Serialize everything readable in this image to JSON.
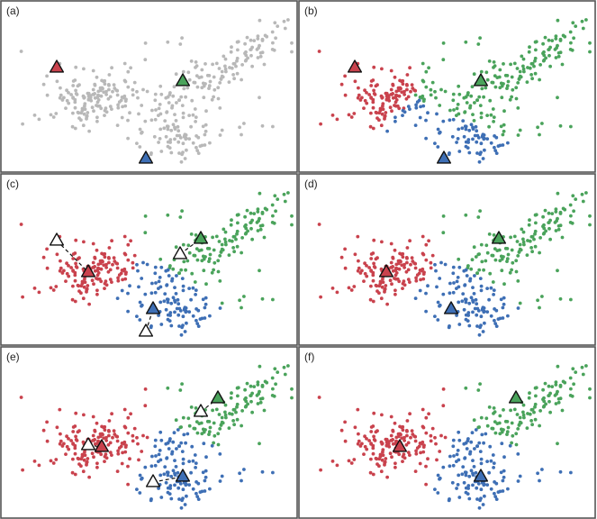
{
  "colors": {
    "unassigned": "#b8b8b8",
    "cluster_red": "#c9424d",
    "cluster_green": "#4aa35b",
    "cluster_blue": "#3e6fb5",
    "old_centroid": "#ffffff"
  },
  "panels": [
    {
      "label": "(a)",
      "assigned": false,
      "centroids": [
        {
          "cluster": "red",
          "x": 63,
          "y": 75
        },
        {
          "cluster": "green",
          "x": 203,
          "y": 90
        },
        {
          "cluster": "blue",
          "x": 162,
          "y": 176
        }
      ],
      "previous_centroids": []
    },
    {
      "label": "(b)",
      "assigned": true,
      "centroids": [
        {
          "cluster": "red",
          "x": 63,
          "y": 75
        },
        {
          "cluster": "green",
          "x": 203,
          "y": 90
        },
        {
          "cluster": "blue",
          "x": 162,
          "y": 176
        }
      ],
      "previous_centroids": []
    },
    {
      "label": "(c)",
      "assigned": true,
      "centroids": [
        {
          "cluster": "red",
          "x": 98,
          "y": 302
        },
        {
          "cluster": "green",
          "x": 223,
          "y": 265
        },
        {
          "cluster": "blue",
          "x": 170,
          "y": 343
        }
      ],
      "previous_centroids": [
        {
          "x": 63,
          "y": 267
        },
        {
          "x": 200,
          "y": 282
        },
        {
          "x": 162,
          "y": 368
        }
      ]
    },
    {
      "label": "(d)",
      "assigned": true,
      "centroids": [
        {
          "cluster": "red",
          "x": 98,
          "y": 302
        },
        {
          "cluster": "green",
          "x": 223,
          "y": 265
        },
        {
          "cluster": "blue",
          "x": 170,
          "y": 343
        }
      ],
      "previous_centroids": []
    },
    {
      "label": "(e)",
      "assigned": true,
      "centroids": [
        {
          "cluster": "red",
          "x": 113,
          "y": 496
        },
        {
          "cluster": "green",
          "x": 242,
          "y": 442
        },
        {
          "cluster": "blue",
          "x": 203,
          "y": 529
        }
      ],
      "previous_centroids": [
        {
          "x": 98,
          "y": 494
        },
        {
          "x": 223,
          "y": 457
        },
        {
          "x": 170,
          "y": 535
        }
      ]
    },
    {
      "label": "(f)",
      "assigned": true,
      "centroids": [
        {
          "cluster": "red",
          "x": 113,
          "y": 496
        },
        {
          "cluster": "green",
          "x": 242,
          "y": 442
        },
        {
          "cluster": "blue",
          "x": 203,
          "y": 529
        }
      ],
      "previous_centroids": []
    }
  ]
}
